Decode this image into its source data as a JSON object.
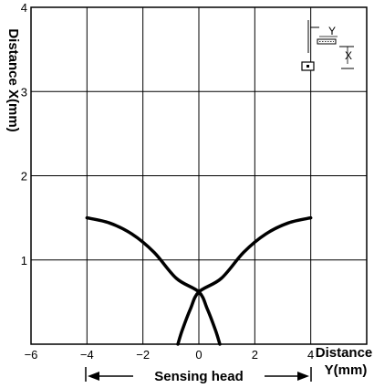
{
  "chart_data": {
    "type": "line",
    "xlabel_line1": "Distance",
    "xlabel_line2": "Y(mm)",
    "ylabel": "Distance X(mm)",
    "xlim": [
      -6,
      6
    ],
    "ylim": [
      0,
      4
    ],
    "x_ticks": [
      "−6",
      "−4",
      "−2",
      "0",
      "2",
      "4"
    ],
    "y_ticks": [
      "1",
      "2",
      "3",
      "4"
    ],
    "grid": true,
    "annotation": "Sensing head",
    "inset_labels": {
      "y": "Y",
      "x": "X"
    },
    "series": [
      {
        "points": [
          [
            -4,
            1.5
          ],
          [
            -3.2,
            1.44
          ],
          [
            -2.4,
            1.31
          ],
          [
            -1.6,
            1.09
          ],
          [
            -0.8,
            0.78
          ],
          [
            0,
            0.62
          ],
          [
            0.3,
            0.42
          ],
          [
            0.6,
            0.16
          ],
          [
            0.75,
            0
          ]
        ]
      },
      {
        "points": [
          [
            4,
            1.5
          ],
          [
            3.2,
            1.44
          ],
          [
            2.4,
            1.31
          ],
          [
            1.6,
            1.09
          ],
          [
            0.8,
            0.78
          ],
          [
            0,
            0.62
          ],
          [
            -0.3,
            0.42
          ],
          [
            -0.6,
            0.16
          ],
          [
            -0.75,
            0
          ]
        ]
      }
    ]
  }
}
